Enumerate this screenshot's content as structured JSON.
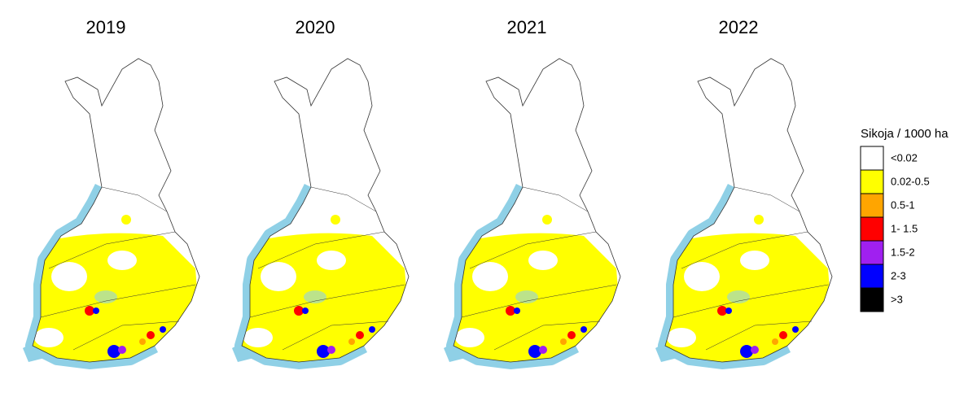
{
  "maps": [
    {
      "title": "2019"
    },
    {
      "title": "2020"
    },
    {
      "title": "2021"
    },
    {
      "title": "2022"
    }
  ],
  "legend": {
    "title": "Sikoja / 1000 ha",
    "items": [
      {
        "label": "<0.02",
        "color": "#ffffff"
      },
      {
        "label": "0.02-0.5",
        "color": "#ffff00"
      },
      {
        "label": "0.5-1",
        "color": "#ffa500"
      },
      {
        "label": "1- 1.5",
        "color": "#ff0000"
      },
      {
        "label": "1.5-2",
        "color": "#a020f0"
      },
      {
        "label": "2-3",
        "color": "#0000ff"
      },
      {
        "label": ">3",
        "color": "#000000"
      }
    ]
  }
}
